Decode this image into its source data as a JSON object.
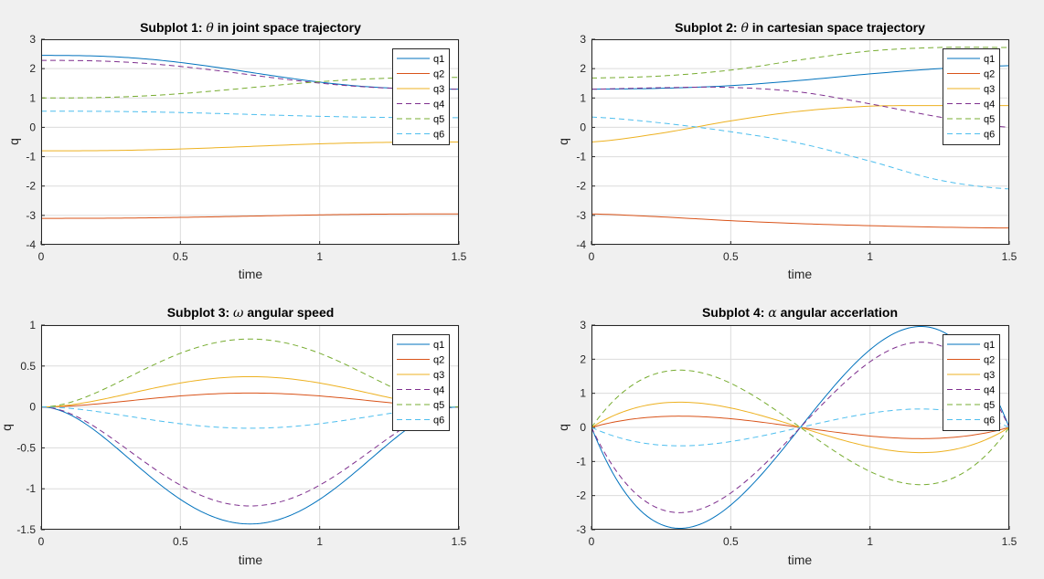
{
  "colors": {
    "background": "#f0f0f0",
    "axes_face": "#ffffff",
    "axes_edge": "#262626",
    "grid": "#dcdcdc",
    "q1": "#0072bd",
    "q2": "#d95319",
    "q3": "#edb120",
    "q4": "#7e2f8e",
    "q5": "#77ac30",
    "q6": "#4dbeee"
  },
  "chart_data": [
    {
      "type": "line",
      "title": "Subplot 1: θ in joint space trajectory",
      "title_prefix": "Subplot 1:",
      "title_symbol": "θ",
      "title_suffix": "in joint space trajectory",
      "xlabel": "time",
      "ylabel": "q",
      "xlim": [
        0,
        1.5
      ],
      "ylim": [
        -4,
        3
      ],
      "xticks": [
        "0",
        "0.5",
        "1",
        "1.5"
      ],
      "yticks": [
        "3",
        "2",
        "1",
        "0",
        "-1",
        "-2",
        "-3",
        "-4"
      ],
      "grid": true,
      "legend_location": "top-right",
      "series": [
        {
          "name": "q1",
          "start": 2.45,
          "end": 1.3,
          "shape": "quintic",
          "style": "solid"
        },
        {
          "name": "q2",
          "start": -3.1,
          "end": -2.95,
          "shape": "quintic",
          "style": "solid"
        },
        {
          "name": "q3",
          "start": -0.8,
          "end": -0.5,
          "shape": "quintic",
          "style": "solid"
        },
        {
          "name": "q4",
          "start": 2.28,
          "end": 1.3,
          "shape": "quintic",
          "style": "dashed"
        },
        {
          "name": "q5",
          "start": 1.0,
          "end": 1.7,
          "shape": "quintic",
          "style": "dashed"
        },
        {
          "name": "q6",
          "start": 0.55,
          "end": 0.33,
          "shape": "quintic",
          "style": "dashed"
        }
      ]
    },
    {
      "type": "line",
      "title": "Subplot 2: θ in cartesian space trajectory",
      "title_prefix": "Subplot 2:",
      "title_symbol": "θ",
      "title_suffix": "in cartesian space trajectory",
      "xlabel": "time",
      "ylabel": "q",
      "xlim": [
        0,
        1.5
      ],
      "ylim": [
        -4,
        3
      ],
      "xticks": [
        "0",
        "0.5",
        "1",
        "1.5"
      ],
      "yticks": [
        "3",
        "2",
        "1",
        "0",
        "-1",
        "-2",
        "-3",
        "-4"
      ],
      "grid": true,
      "legend_location": "top-right",
      "series": [
        {
          "name": "q1",
          "style": "solid",
          "x": [
            0,
            0.25,
            0.5,
            0.75,
            1.0,
            1.25,
            1.5
          ],
          "y": [
            1.3,
            1.33,
            1.42,
            1.6,
            1.82,
            2.0,
            2.1
          ]
        },
        {
          "name": "q2",
          "style": "solid",
          "x": [
            0,
            0.25,
            0.5,
            0.75,
            1.0,
            1.25,
            1.5
          ],
          "y": [
            -2.95,
            -3.05,
            -3.18,
            -3.28,
            -3.35,
            -3.4,
            -3.43
          ]
        },
        {
          "name": "q3",
          "style": "solid",
          "x": [
            0,
            0.25,
            0.5,
            0.75,
            1.0,
            1.25,
            1.5
          ],
          "y": [
            -0.5,
            -0.2,
            0.22,
            0.55,
            0.72,
            0.74,
            0.74
          ]
        },
        {
          "name": "q4",
          "style": "dashed",
          "x": [
            0,
            0.25,
            0.5,
            0.75,
            1.0,
            1.25,
            1.5
          ],
          "y": [
            1.3,
            1.35,
            1.36,
            1.2,
            0.8,
            0.35,
            0.0
          ]
        },
        {
          "name": "q5",
          "style": "dashed",
          "x": [
            0,
            0.25,
            0.5,
            0.75,
            1.0,
            1.25,
            1.5
          ],
          "y": [
            1.68,
            1.75,
            1.95,
            2.3,
            2.6,
            2.72,
            2.72
          ]
        },
        {
          "name": "q6",
          "style": "dashed",
          "x": [
            0,
            0.25,
            0.5,
            0.75,
            1.0,
            1.25,
            1.5
          ],
          "y": [
            0.35,
            0.15,
            -0.15,
            -0.55,
            -1.15,
            -1.8,
            -2.1
          ]
        }
      ]
    },
    {
      "type": "line",
      "title": "Subplot 3: ω angular speed",
      "title_prefix": "Subplot 3:",
      "title_symbol": "ω",
      "title_suffix": "angular speed",
      "xlabel": "time",
      "ylabel": "q",
      "xlim": [
        0,
        1.5
      ],
      "ylim": [
        -1.5,
        1
      ],
      "xticks": [
        "0",
        "0.5",
        "1",
        "1.5"
      ],
      "yticks": [
        "1",
        "0.5",
        "0",
        "-0.5",
        "-1",
        "-1.5"
      ],
      "grid": true,
      "legend_location": "top-right",
      "series": [
        {
          "name": "q1",
          "peak": -1.43,
          "shape": "quartic-bump",
          "style": "solid"
        },
        {
          "name": "q2",
          "peak": 0.17,
          "shape": "quartic-bump",
          "style": "solid"
        },
        {
          "name": "q3",
          "peak": 0.37,
          "shape": "quartic-bump",
          "style": "solid"
        },
        {
          "name": "q4",
          "peak": -1.21,
          "shape": "quartic-bump",
          "style": "dashed"
        },
        {
          "name": "q5",
          "peak": 0.83,
          "shape": "quartic-bump",
          "style": "dashed"
        },
        {
          "name": "q6",
          "peak": -0.26,
          "shape": "quartic-bump",
          "style": "dashed"
        }
      ]
    },
    {
      "type": "line",
      "title": "Subplot 4: α angular accerlation",
      "title_prefix": "Subplot 4:",
      "title_symbol": "α",
      "title_suffix": "angular accerlation",
      "xlabel": "time",
      "ylabel": "q",
      "xlim": [
        0,
        1.5
      ],
      "ylim": [
        -3,
        3
      ],
      "xticks": [
        "0",
        "0.5",
        "1",
        "1.5"
      ],
      "yticks": [
        "3",
        "2",
        "1",
        "0",
        "-1",
        "-2",
        "-3"
      ],
      "grid": true,
      "legend_location": "top-right",
      "series": [
        {
          "name": "q1",
          "peak": -2.96,
          "shape": "cubic-wave",
          "style": "solid"
        },
        {
          "name": "q2",
          "peak": 0.33,
          "shape": "cubic-wave",
          "style": "solid"
        },
        {
          "name": "q3",
          "peak": 0.74,
          "shape": "cubic-wave",
          "style": "solid"
        },
        {
          "name": "q4",
          "peak": -2.5,
          "shape": "cubic-wave",
          "style": "dashed"
        },
        {
          "name": "q5",
          "peak": 1.68,
          "shape": "cubic-wave",
          "style": "dashed"
        },
        {
          "name": "q6",
          "peak": -0.54,
          "shape": "cubic-wave",
          "style": "dashed"
        }
      ]
    }
  ]
}
